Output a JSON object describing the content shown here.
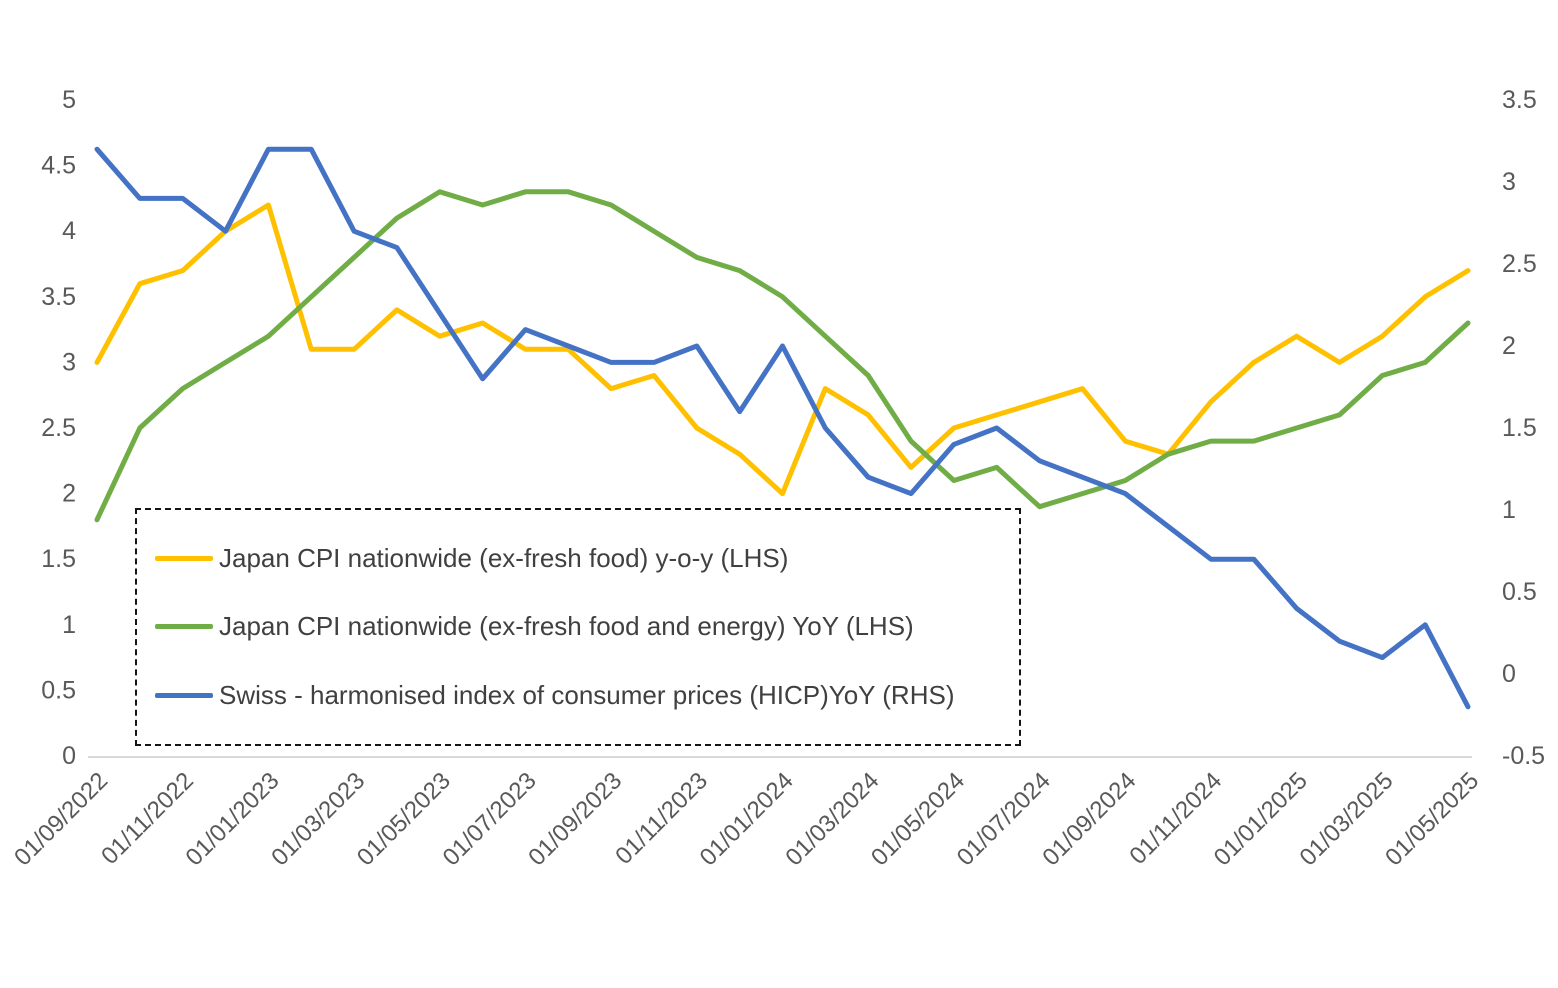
{
  "chart_data": {
    "type": "line",
    "title": "",
    "grid": false,
    "legend_position": "inside-bottom-left-dashed-box",
    "x": [
      "01/09/2022",
      "01/10/2022",
      "01/11/2022",
      "01/12/2022",
      "01/01/2023",
      "01/02/2023",
      "01/03/2023",
      "01/04/2023",
      "01/05/2023",
      "01/06/2023",
      "01/07/2023",
      "01/08/2023",
      "01/09/2023",
      "01/10/2023",
      "01/11/2023",
      "01/12/2023",
      "01/01/2024",
      "01/02/2024",
      "01/03/2024",
      "01/04/2024",
      "01/05/2024",
      "01/06/2024",
      "01/07/2024",
      "01/08/2024",
      "01/09/2024",
      "01/10/2024",
      "01/11/2024",
      "01/12/2024",
      "01/01/2025",
      "01/02/2025",
      "01/03/2025",
      "01/04/2025",
      "01/05/2025"
    ],
    "x_tick_every": 2,
    "left_axis": {
      "min": 0,
      "max": 5,
      "step": 0.5,
      "tick_labels": [
        "0",
        "0.5",
        "1",
        "1.5",
        "2",
        "2.5",
        "3",
        "3.5",
        "4",
        "4.5",
        "5"
      ]
    },
    "right_axis": {
      "min": -0.5,
      "max": 3.5,
      "step": 0.5,
      "tick_labels": [
        "-0.5",
        "0",
        "0.5",
        "1",
        "1.5",
        "2",
        "2.5",
        "3",
        "3.5"
      ]
    },
    "series": [
      {
        "name": "Japan CPI nationwide (ex-fresh food) y-o-y (LHS)",
        "axis": "left",
        "color": "#FFC000",
        "values": [
          3.0,
          3.6,
          3.7,
          4.0,
          4.2,
          3.1,
          3.1,
          3.4,
          3.2,
          3.3,
          3.1,
          3.1,
          2.8,
          2.9,
          2.5,
          2.3,
          2.0,
          2.8,
          2.6,
          2.2,
          2.5,
          2.6,
          2.7,
          2.8,
          2.4,
          2.3,
          2.7,
          3.0,
          3.2,
          3.0,
          3.2,
          3.5,
          3.7
        ]
      },
      {
        "name": "Japan CPI nationwide (ex-fresh food and energy) YoY (LHS)",
        "axis": "left",
        "color": "#70AD47",
        "values": [
          1.8,
          2.5,
          2.8,
          3.0,
          3.2,
          3.5,
          3.8,
          4.1,
          4.3,
          4.2,
          4.3,
          4.3,
          4.2,
          4.0,
          3.8,
          3.7,
          3.5,
          3.2,
          2.9,
          2.4,
          2.1,
          2.2,
          1.9,
          2.0,
          2.1,
          2.3,
          2.4,
          2.4,
          2.5,
          2.6,
          2.9,
          3.0,
          3.3
        ]
      },
      {
        "name": "Swiss - harmonised index of consumer prices (HICP)YoY (RHS)",
        "axis": "right",
        "color": "#4472C4",
        "values": [
          3.2,
          2.9,
          2.9,
          2.7,
          3.2,
          3.2,
          2.7,
          2.6,
          2.2,
          1.8,
          2.1,
          2.0,
          1.9,
          1.9,
          2.0,
          1.6,
          2.0,
          1.5,
          1.2,
          1.1,
          1.4,
          1.5,
          1.3,
          1.2,
          1.1,
          0.9,
          0.7,
          0.7,
          0.4,
          0.2,
          0.1,
          0.3,
          -0.2
        ]
      }
    ]
  }
}
